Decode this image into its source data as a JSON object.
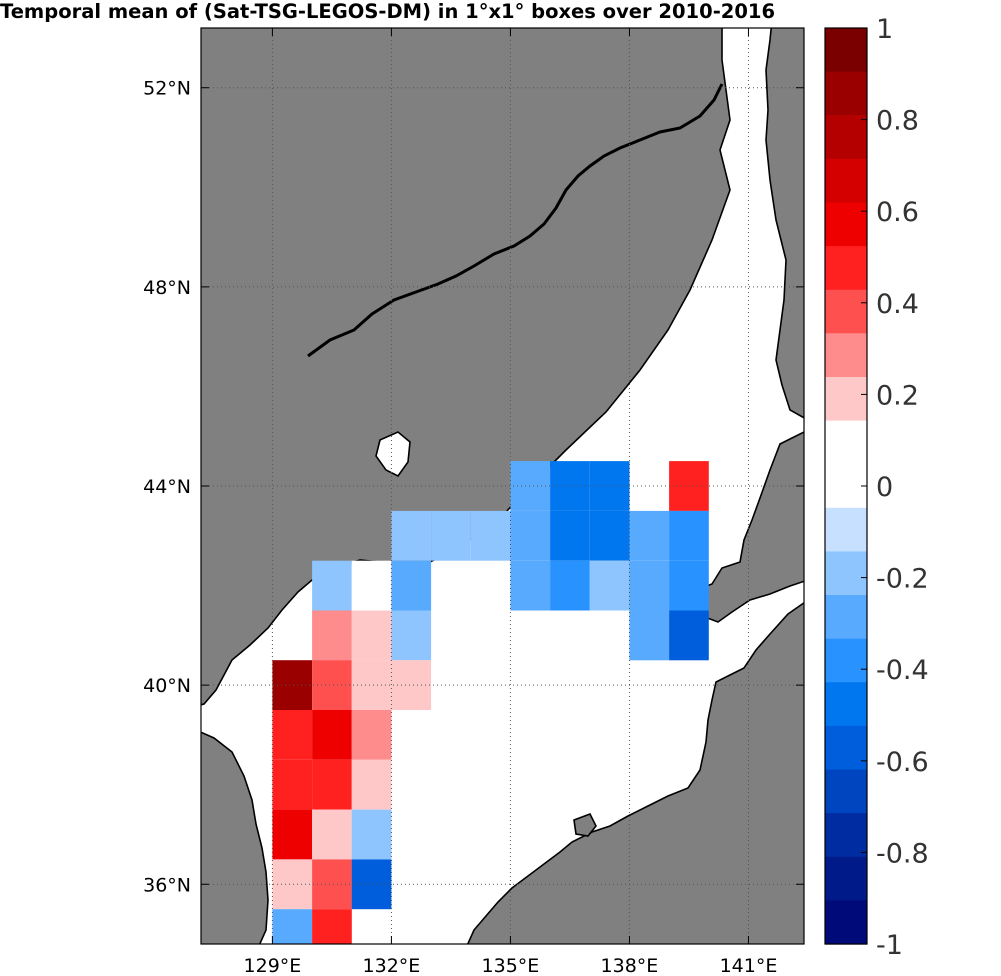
{
  "title": "Temporal mean of (Sat-TSG-LEGOS-DM) in 1°x1° boxes over 2010-2016",
  "map": {
    "lon_range": [
      127.2,
      142.4
    ],
    "lat_range": [
      34.8,
      53.2
    ],
    "lon_ticks": [
      {
        "value": 129,
        "label": "129°E"
      },
      {
        "value": 132,
        "label": "132°E"
      },
      {
        "value": 135,
        "label": "135°E"
      },
      {
        "value": 138,
        "label": "138°E"
      },
      {
        "value": 141,
        "label": "141°E"
      }
    ],
    "lat_ticks": [
      {
        "value": 36,
        "label": "36°N"
      },
      {
        "value": 40,
        "label": "40°N"
      },
      {
        "value": 44,
        "label": "44°N"
      },
      {
        "value": 48,
        "label": "48°N"
      },
      {
        "value": 52,
        "label": "52°N"
      }
    ],
    "grid": true,
    "land_color": "#808080",
    "sea_color": "#ffffff"
  },
  "chart_data": {
    "type": "heatmap",
    "title": "Temporal mean of (Sat-TSG-LEGOS-DM) in 1°x1° boxes over 2010-2016",
    "color_range": [
      -1,
      1
    ],
    "cells": [
      {
        "lon": 129.5,
        "lat": 40,
        "value": 0.85
      },
      {
        "lon": 129.5,
        "lat": 39,
        "value": 0.45
      },
      {
        "lon": 129.5,
        "lat": 38,
        "value": 0.45
      },
      {
        "lon": 129.5,
        "lat": 37,
        "value": 0.55
      },
      {
        "lon": 129.5,
        "lat": 36,
        "value": 0.15
      },
      {
        "lon": 129.5,
        "lat": 35,
        "value": -0.25
      },
      {
        "lon": 130.5,
        "lat": 42,
        "value": -0.15
      },
      {
        "lon": 130.5,
        "lat": 41,
        "value": 0.25
      },
      {
        "lon": 130.5,
        "lat": 40,
        "value": 0.35
      },
      {
        "lon": 130.5,
        "lat": 39,
        "value": 0.55
      },
      {
        "lon": 130.5,
        "lat": 38,
        "value": 0.45
      },
      {
        "lon": 130.5,
        "lat": 37,
        "value": 0.15
      },
      {
        "lon": 130.5,
        "lat": 36,
        "value": 0.35
      },
      {
        "lon": 130.5,
        "lat": 35,
        "value": 0.45
      },
      {
        "lon": 131.5,
        "lat": 42,
        "value": 0.05
      },
      {
        "lon": 131.5,
        "lat": 41,
        "value": 0.15
      },
      {
        "lon": 131.5,
        "lat": 40,
        "value": 0.15
      },
      {
        "lon": 131.5,
        "lat": 39,
        "value": 0.25
      },
      {
        "lon": 131.5,
        "lat": 38,
        "value": 0.15
      },
      {
        "lon": 131.5,
        "lat": 37,
        "value": -0.15
      },
      {
        "lon": 131.5,
        "lat": 36,
        "value": -0.6
      },
      {
        "lon": 132.5,
        "lat": 43,
        "value": -0.15
      },
      {
        "lon": 132.5,
        "lat": 42,
        "value": -0.25
      },
      {
        "lon": 132.5,
        "lat": 41,
        "value": -0.15
      },
      {
        "lon": 132.5,
        "lat": 40,
        "value": 0.15
      },
      {
        "lon": 133.5,
        "lat": 43,
        "value": -0.15
      },
      {
        "lon": 134.5,
        "lat": 43,
        "value": -0.15
      },
      {
        "lon": 135.5,
        "lat": 44,
        "value": -0.25
      },
      {
        "lon": 135.5,
        "lat": 43,
        "value": -0.25
      },
      {
        "lon": 135.5,
        "lat": 42,
        "value": -0.25
      },
      {
        "lon": 136.5,
        "lat": 44,
        "value": -0.45
      },
      {
        "lon": 136.5,
        "lat": 43,
        "value": -0.45
      },
      {
        "lon": 136.5,
        "lat": 42,
        "value": -0.35
      },
      {
        "lon": 137.5,
        "lat": 44,
        "value": -0.45
      },
      {
        "lon": 137.5,
        "lat": 43,
        "value": -0.45
      },
      {
        "lon": 137.5,
        "lat": 42,
        "value": -0.15
      },
      {
        "lon": 138.5,
        "lat": 43,
        "value": -0.25
      },
      {
        "lon": 138.5,
        "lat": 42,
        "value": -0.25
      },
      {
        "lon": 138.5,
        "lat": 41,
        "value": -0.25
      },
      {
        "lon": 139.5,
        "lat": 44,
        "value": 0.45
      },
      {
        "lon": 139.5,
        "lat": 43,
        "value": -0.35
      },
      {
        "lon": 139.5,
        "lat": 42,
        "value": -0.35
      },
      {
        "lon": 139.5,
        "lat": 41,
        "value": -0.55
      }
    ],
    "colorbar": {
      "ticks": [
        {
          "value": 1,
          "label": "1"
        },
        {
          "value": 0.8,
          "label": "0.8"
        },
        {
          "value": 0.6,
          "label": "0.6"
        },
        {
          "value": 0.4,
          "label": "0.4"
        },
        {
          "value": 0.2,
          "label": "0.2"
        },
        {
          "value": 0,
          "label": "0"
        },
        {
          "value": -0.2,
          "label": "-0.2"
        },
        {
          "value": -0.4,
          "label": "-0.4"
        },
        {
          "value": -0.6,
          "label": "-0.6"
        },
        {
          "value": -0.8,
          "label": "-0.8"
        },
        {
          "value": -1,
          "label": "-1"
        }
      ],
      "colors": [
        "#7a0000",
        "#9a0000",
        "#b50000",
        "#d40000",
        "#ee0000",
        "#ff2020",
        "#ff5050",
        "#ff8c8c",
        "#ffc8c8",
        "#ffffff",
        "#ffffff",
        "#c8e0ff",
        "#8ec5ff",
        "#58aaff",
        "#2892ff",
        "#0077ee",
        "#005edc",
        "#0045c0",
        "#002ca2",
        "#001a8a",
        "#000a78"
      ]
    }
  }
}
